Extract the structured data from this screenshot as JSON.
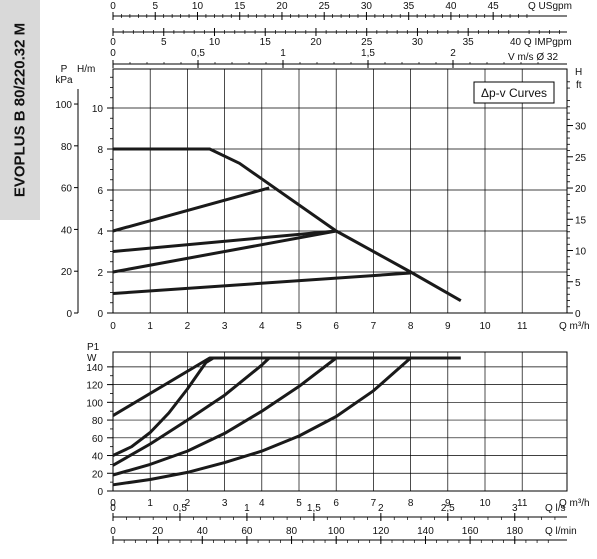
{
  "side_label": "EVOPLUS B 80/220.32 M",
  "colors": {
    "curve": "#1a1a1a",
    "grid": "#000000",
    "panel": "#d9d9d9"
  },
  "chart_data": [
    {
      "type": "line",
      "title": "",
      "legend": "Δp-v Curves",
      "legend_position": "top-right",
      "grid": true,
      "x_scale": {
        "label": "Q m³/h",
        "ticks": [
          0,
          1,
          2,
          3,
          4,
          5,
          6,
          7,
          8,
          9,
          10,
          11
        ],
        "range": [
          0,
          12.2
        ]
      },
      "y_left": {
        "label": "H/m",
        "ticks": [
          0,
          2,
          4,
          6,
          8,
          10
        ],
        "range": [
          0,
          11.8
        ]
      },
      "y_left_outer": {
        "label": "P",
        "unit": "kPa",
        "ticks": [
          0,
          20,
          40,
          60,
          80,
          100
        ],
        "tick_labels": [
          "0",
          "20",
          "40",
          "60",
          "80",
          "100"
        ]
      },
      "y_right": {
        "label": "H",
        "unit": "ft",
        "ticks": [
          0,
          5,
          10,
          15,
          20,
          25,
          30
        ],
        "tick_labels": [
          "0",
          "5",
          "10",
          "15",
          "20",
          "25",
          "30"
        ]
      },
      "top_axes": [
        {
          "label": "Q USgpm",
          "ticks": [
            0,
            5,
            10,
            15,
            20,
            25,
            30,
            35,
            40,
            45
          ],
          "tick_labels": [
            "0",
            "5",
            "10",
            "15",
            "20",
            "25",
            "30",
            "35",
            "40",
            "45"
          ]
        },
        {
          "label": "40 Q IMPgpm",
          "ticks": [
            0,
            5,
            10,
            15,
            20,
            25,
            30,
            35
          ],
          "tick_labels": [
            "0",
            "5",
            "10",
            "15",
            "20",
            "25",
            "30",
            "35"
          ]
        },
        {
          "label": "V m/s Ø 32",
          "ticks": [
            0,
            0.5,
            1,
            1.5,
            2
          ],
          "tick_labels": [
            "0",
            "0,5",
            "1",
            "1,5",
            "2"
          ]
        }
      ],
      "series": [
        {
          "x": [
            0,
            2.6,
            3.4,
            6.0,
            8.0,
            9.35
          ],
          "y": [
            8,
            8,
            7.3,
            4.0,
            2.0,
            0.6
          ]
        },
        {
          "x": [
            0,
            4.2
          ],
          "y": [
            4,
            6.1
          ]
        },
        {
          "x": [
            0,
            6.0
          ],
          "y": [
            3,
            4.0
          ]
        },
        {
          "x": [
            0,
            6.0
          ],
          "y": [
            2,
            4.0
          ]
        },
        {
          "x": [
            0,
            8.0
          ],
          "y": [
            0.95,
            1.95
          ]
        }
      ]
    },
    {
      "type": "line",
      "title": "",
      "grid": true,
      "x_scale": {
        "label": "Q m³/h",
        "ticks": [
          0,
          1,
          2,
          3,
          4,
          5,
          6,
          7,
          8,
          9,
          10,
          11
        ],
        "range": [
          0,
          12.2
        ]
      },
      "y_left": {
        "label": "P1",
        "unit": "W",
        "ticks": [
          0,
          20,
          40,
          60,
          80,
          100,
          120,
          140
        ],
        "tick_labels": [
          "0",
          "20",
          "40",
          "60",
          "80",
          "100",
          "120",
          "140"
        ],
        "range": [
          0,
          150
        ]
      },
      "bottom_axes": [
        {
          "label": "Q l/s",
          "ticks": [
            0,
            0.5,
            1,
            1.5,
            2,
            2.5,
            3
          ],
          "tick_labels": [
            "0",
            "0,5",
            "1",
            "1,5",
            "2",
            "2,5",
            "3"
          ]
        },
        {
          "label": "Q l/min",
          "ticks": [
            0,
            20,
            40,
            60,
            80,
            100,
            120,
            140,
            160,
            180
          ],
          "tick_labels": [
            "0",
            "20",
            "40",
            "60",
            "80",
            "100",
            "120",
            "140",
            "160",
            "180"
          ]
        }
      ],
      "series": [
        {
          "x": [
            0,
            2.6,
            9.35
          ],
          "y": [
            85,
            150,
            150
          ]
        },
        {
          "x": [
            0,
            0.5,
            1.0,
            1.5,
            2.0,
            2.5,
            2.7
          ],
          "y": [
            40,
            50,
            66,
            88,
            115,
            145,
            150
          ]
        },
        {
          "x": [
            0,
            1.0,
            2.0,
            3.0,
            4.0,
            4.2
          ],
          "y": [
            29,
            53,
            80,
            108,
            142,
            150
          ]
        },
        {
          "x": [
            0,
            1.0,
            2.0,
            3.0,
            4.0,
            5.0,
            6.0
          ],
          "y": [
            18,
            30,
            45,
            65,
            90,
            118,
            150
          ]
        },
        {
          "x": [
            0,
            1.0,
            2.0,
            3.0,
            4.0,
            5.0,
            6.0,
            7.0,
            8.0
          ],
          "y": [
            7,
            13,
            21,
            32,
            45,
            62,
            84,
            113,
            150
          ]
        }
      ]
    }
  ]
}
